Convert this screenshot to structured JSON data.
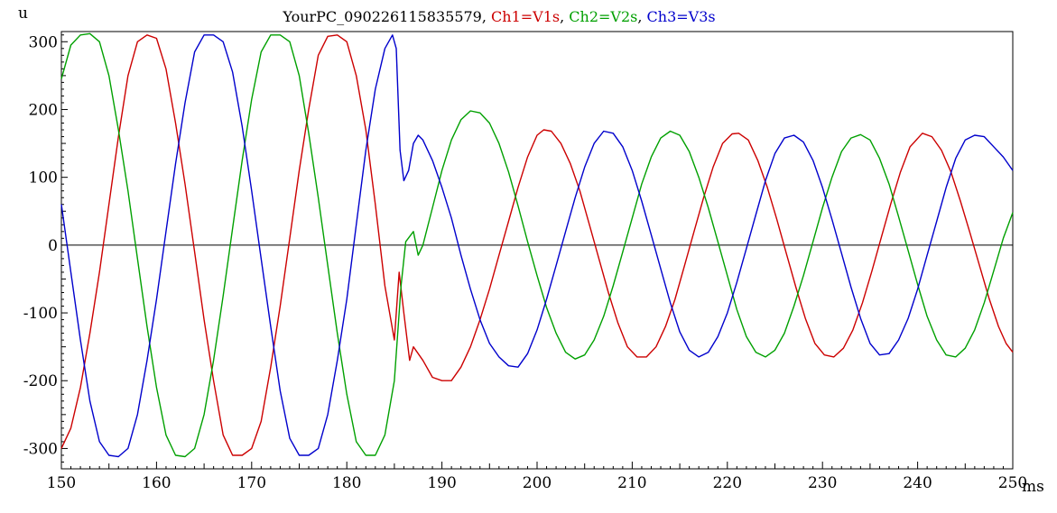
{
  "chart_data": {
    "type": "line",
    "title_parts": [
      {
        "text": "YourPC_090226115835579, ",
        "color": "#000000"
      },
      {
        "text": "Ch1=V1s",
        "color": "#cc0000"
      },
      {
        "text": ", ",
        "color": "#000000"
      },
      {
        "text": "Ch2=V2s",
        "color": "#00a000"
      },
      {
        "text": ", ",
        "color": "#000000"
      },
      {
        "text": "Ch3=V3s",
        "color": "#0000cc"
      }
    ],
    "xlabel": "ms",
    "ylabel": "u",
    "xlim": [
      150,
      250
    ],
    "ylim": [
      -330,
      315
    ],
    "x_ticks": [
      150,
      160,
      170,
      180,
      190,
      200,
      210,
      220,
      230,
      240,
      250
    ],
    "y_ticks": [
      300,
      200,
      100,
      0,
      -100,
      -200,
      -300
    ],
    "grid": false,
    "legend": "in title",
    "series": [
      {
        "name": "Ch1=V1s",
        "color": "#cc0000",
        "points": [
          [
            150,
            -300
          ],
          [
            151,
            -270
          ],
          [
            152,
            -210
          ],
          [
            153,
            -130
          ],
          [
            154,
            -40
          ],
          [
            155,
            60
          ],
          [
            156,
            160
          ],
          [
            157,
            250
          ],
          [
            158,
            300
          ],
          [
            159,
            310
          ],
          [
            160,
            305
          ],
          [
            161,
            260
          ],
          [
            162,
            180
          ],
          [
            163,
            90
          ],
          [
            164,
            -10
          ],
          [
            165,
            -110
          ],
          [
            166,
            -200
          ],
          [
            167,
            -280
          ],
          [
            168,
            -310
          ],
          [
            169,
            -310
          ],
          [
            170,
            -300
          ],
          [
            171,
            -260
          ],
          [
            172,
            -180
          ],
          [
            173,
            -90
          ],
          [
            174,
            10
          ],
          [
            175,
            110
          ],
          [
            176,
            200
          ],
          [
            177,
            280
          ],
          [
            178,
            308
          ],
          [
            179,
            310
          ],
          [
            180,
            300
          ],
          [
            181,
            250
          ],
          [
            182,
            170
          ],
          [
            183,
            60
          ],
          [
            184,
            -60
          ],
          [
            185,
            -140
          ],
          [
            185.5,
            -40
          ],
          [
            186,
            -100
          ],
          [
            186.6,
            -170
          ],
          [
            187,
            -150
          ],
          [
            188,
            -170
          ],
          [
            189,
            -195
          ],
          [
            190,
            -200
          ],
          [
            191,
            -200
          ],
          [
            192,
            -180
          ],
          [
            193,
            -150
          ],
          [
            194,
            -110
          ],
          [
            195,
            -65
          ],
          [
            196,
            -15
          ],
          [
            197,
            35
          ],
          [
            198,
            85
          ],
          [
            199,
            130
          ],
          [
            200,
            162
          ],
          [
            200.7,
            170
          ],
          [
            201.5,
            168
          ],
          [
            202.5,
            150
          ],
          [
            203.5,
            120
          ],
          [
            204.5,
            80
          ],
          [
            205.5,
            30
          ],
          [
            206.5,
            -20
          ],
          [
            207.5,
            -70
          ],
          [
            208.5,
            -115
          ],
          [
            209.5,
            -150
          ],
          [
            210.5,
            -165
          ],
          [
            211.5,
            -165
          ],
          [
            212.5,
            -150
          ],
          [
            213.5,
            -120
          ],
          [
            214.5,
            -80
          ],
          [
            215.5,
            -30
          ],
          [
            216.5,
            20
          ],
          [
            217.5,
            70
          ],
          [
            218.5,
            115
          ],
          [
            219.5,
            150
          ],
          [
            220.5,
            164
          ],
          [
            221.2,
            165
          ],
          [
            222.2,
            155
          ],
          [
            223.2,
            125
          ],
          [
            224.2,
            85
          ],
          [
            225.2,
            38
          ],
          [
            226.2,
            -12
          ],
          [
            227.2,
            -62
          ],
          [
            228.2,
            -108
          ],
          [
            229.2,
            -145
          ],
          [
            230.2,
            -162
          ],
          [
            231.2,
            -165
          ],
          [
            232.2,
            -152
          ],
          [
            233.2,
            -125
          ],
          [
            234.2,
            -85
          ],
          [
            235.2,
            -38
          ],
          [
            236.2,
            12
          ],
          [
            237.2,
            62
          ],
          [
            238.2,
            108
          ],
          [
            239.2,
            145
          ],
          [
            240.5,
            165
          ],
          [
            241.5,
            160
          ],
          [
            242.5,
            140
          ],
          [
            243.5,
            108
          ],
          [
            244.5,
            65
          ],
          [
            245.5,
            18
          ],
          [
            246.5,
            -30
          ],
          [
            247.5,
            -78
          ],
          [
            248.5,
            -120
          ],
          [
            249.3,
            -145
          ],
          [
            250,
            -158
          ]
        ]
      },
      {
        "name": "Ch2=V2s",
        "color": "#00a000",
        "points": [
          [
            150,
            245
          ],
          [
            151,
            295
          ],
          [
            152,
            310
          ],
          [
            153,
            312
          ],
          [
            154,
            300
          ],
          [
            155,
            250
          ],
          [
            156,
            170
          ],
          [
            157,
            80
          ],
          [
            158,
            -20
          ],
          [
            159,
            -120
          ],
          [
            160,
            -210
          ],
          [
            161,
            -280
          ],
          [
            162,
            -310
          ],
          [
            163,
            -312
          ],
          [
            164,
            -300
          ],
          [
            165,
            -250
          ],
          [
            166,
            -170
          ],
          [
            167,
            -75
          ],
          [
            168,
            25
          ],
          [
            169,
            125
          ],
          [
            170,
            215
          ],
          [
            171,
            285
          ],
          [
            172,
            310
          ],
          [
            173,
            310
          ],
          [
            174,
            300
          ],
          [
            175,
            250
          ],
          [
            176,
            165
          ],
          [
            177,
            70
          ],
          [
            178,
            -30
          ],
          [
            179,
            -130
          ],
          [
            180,
            -220
          ],
          [
            181,
            -290
          ],
          [
            182,
            -310
          ],
          [
            183,
            -310
          ],
          [
            184,
            -280
          ],
          [
            185,
            -200
          ],
          [
            185.7,
            -60
          ],
          [
            186.2,
            5
          ],
          [
            187,
            20
          ],
          [
            187.5,
            -15
          ],
          [
            188,
            0
          ],
          [
            189,
            55
          ],
          [
            190,
            110
          ],
          [
            191,
            155
          ],
          [
            192,
            185
          ],
          [
            193,
            198
          ],
          [
            194,
            195
          ],
          [
            195,
            180
          ],
          [
            196,
            150
          ],
          [
            197,
            108
          ],
          [
            198,
            58
          ],
          [
            199,
            5
          ],
          [
            200,
            -45
          ],
          [
            201,
            -92
          ],
          [
            202,
            -130
          ],
          [
            203,
            -158
          ],
          [
            204,
            -168
          ],
          [
            205,
            -162
          ],
          [
            206,
            -140
          ],
          [
            207,
            -105
          ],
          [
            208,
            -60
          ],
          [
            209,
            -10
          ],
          [
            210,
            40
          ],
          [
            211,
            90
          ],
          [
            212,
            130
          ],
          [
            213,
            158
          ],
          [
            214,
            168
          ],
          [
            215,
            162
          ],
          [
            216,
            138
          ],
          [
            217,
            100
          ],
          [
            218,
            55
          ],
          [
            219,
            5
          ],
          [
            220,
            -45
          ],
          [
            221,
            -95
          ],
          [
            222,
            -135
          ],
          [
            223,
            -158
          ],
          [
            224,
            -165
          ],
          [
            225,
            -155
          ],
          [
            226,
            -130
          ],
          [
            227,
            -90
          ],
          [
            228,
            -45
          ],
          [
            229,
            5
          ],
          [
            230,
            55
          ],
          [
            231,
            100
          ],
          [
            232,
            138
          ],
          [
            233,
            158
          ],
          [
            234,
            163
          ],
          [
            235,
            155
          ],
          [
            236,
            128
          ],
          [
            237,
            90
          ],
          [
            238,
            42
          ],
          [
            239,
            -8
          ],
          [
            240,
            -58
          ],
          [
            241,
            -105
          ],
          [
            242,
            -140
          ],
          [
            243,
            -162
          ],
          [
            244,
            -165
          ],
          [
            245,
            -152
          ],
          [
            246,
            -125
          ],
          [
            247,
            -85
          ],
          [
            248,
            -38
          ],
          [
            249,
            10
          ],
          [
            250,
            48
          ]
        ]
      },
      {
        "name": "Ch3=V3s",
        "color": "#0000cc",
        "points": [
          [
            150,
            60
          ],
          [
            151,
            -40
          ],
          [
            152,
            -140
          ],
          [
            153,
            -230
          ],
          [
            154,
            -290
          ],
          [
            155,
            -310
          ],
          [
            156,
            -312
          ],
          [
            157,
            -300
          ],
          [
            158,
            -250
          ],
          [
            159,
            -170
          ],
          [
            160,
            -80
          ],
          [
            161,
            20
          ],
          [
            162,
            120
          ],
          [
            163,
            210
          ],
          [
            164,
            285
          ],
          [
            165,
            310
          ],
          [
            166,
            310
          ],
          [
            167,
            300
          ],
          [
            168,
            255
          ],
          [
            169,
            175
          ],
          [
            170,
            80
          ],
          [
            171,
            -20
          ],
          [
            172,
            -120
          ],
          [
            173,
            -215
          ],
          [
            174,
            -285
          ],
          [
            175,
            -310
          ],
          [
            176,
            -310
          ],
          [
            177,
            -300
          ],
          [
            178,
            -250
          ],
          [
            179,
            -170
          ],
          [
            180,
            -80
          ],
          [
            181,
            30
          ],
          [
            182,
            140
          ],
          [
            183,
            230
          ],
          [
            184,
            290
          ],
          [
            184.8,
            310
          ],
          [
            185.2,
            290
          ],
          [
            185.6,
            140
          ],
          [
            186,
            95
          ],
          [
            186.5,
            110
          ],
          [
            187,
            150
          ],
          [
            187.5,
            162
          ],
          [
            188,
            155
          ],
          [
            189,
            125
          ],
          [
            190,
            85
          ],
          [
            191,
            40
          ],
          [
            192,
            -15
          ],
          [
            193,
            -65
          ],
          [
            194,
            -110
          ],
          [
            195,
            -145
          ],
          [
            196,
            -165
          ],
          [
            197,
            -178
          ],
          [
            198,
            -180
          ],
          [
            199,
            -160
          ],
          [
            200,
            -125
          ],
          [
            201,
            -80
          ],
          [
            202,
            -30
          ],
          [
            203,
            20
          ],
          [
            204,
            70
          ],
          [
            205,
            115
          ],
          [
            206,
            150
          ],
          [
            207,
            168
          ],
          [
            208,
            165
          ],
          [
            209,
            145
          ],
          [
            210,
            110
          ],
          [
            211,
            65
          ],
          [
            212,
            15
          ],
          [
            213,
            -35
          ],
          [
            214,
            -85
          ],
          [
            215,
            -128
          ],
          [
            216,
            -155
          ],
          [
            217,
            -165
          ],
          [
            218,
            -158
          ],
          [
            219,
            -135
          ],
          [
            220,
            -100
          ],
          [
            221,
            -55
          ],
          [
            222,
            -5
          ],
          [
            223,
            45
          ],
          [
            224,
            95
          ],
          [
            225,
            135
          ],
          [
            226,
            158
          ],
          [
            227,
            162
          ],
          [
            228,
            152
          ],
          [
            229,
            125
          ],
          [
            230,
            85
          ],
          [
            231,
            38
          ],
          [
            232,
            -12
          ],
          [
            233,
            -62
          ],
          [
            234,
            -108
          ],
          [
            235,
            -145
          ],
          [
            236,
            -162
          ],
          [
            237,
            -160
          ],
          [
            238,
            -140
          ],
          [
            239,
            -108
          ],
          [
            240,
            -65
          ],
          [
            241,
            -15
          ],
          [
            242,
            35
          ],
          [
            243,
            85
          ],
          [
            244,
            128
          ],
          [
            245,
            155
          ],
          [
            246,
            162
          ],
          [
            247,
            160
          ],
          [
            248,
            145
          ],
          [
            249,
            130
          ],
          [
            250,
            110
          ]
        ]
      }
    ]
  }
}
